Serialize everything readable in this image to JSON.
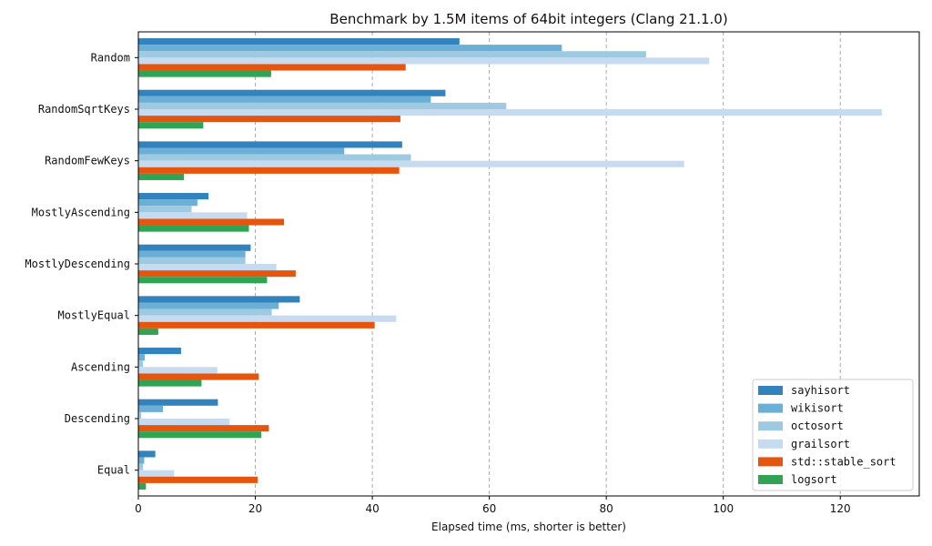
{
  "chart_data": {
    "type": "bar",
    "orientation": "horizontal",
    "title": "Benchmark by 1.5M items of 64bit integers (Clang 21.1.0)",
    "xlabel": "Elapsed time (ms, shorter is better)",
    "ylabel": "",
    "xlim": [
      0,
      133.5
    ],
    "xticks": [
      0,
      20,
      40,
      60,
      80,
      100,
      120
    ],
    "grid": "x-dashed",
    "legend_position": "lower-right",
    "categories": [
      "Random",
      "RandomSqrtKeys",
      "RandomFewKeys",
      "MostlyAscending",
      "MostlyDescending",
      "MostlyEqual",
      "Ascending",
      "Descending",
      "Equal"
    ],
    "series": [
      {
        "name": "sayhisort",
        "color": "#3182bd",
        "values": [
          54.9,
          52.5,
          45.1,
          12.0,
          19.2,
          27.6,
          7.3,
          13.6,
          2.9
        ]
      },
      {
        "name": "wikisort",
        "color": "#6baed6",
        "values": [
          72.4,
          50.0,
          35.2,
          10.1,
          18.3,
          24.0,
          1.1,
          4.2,
          1.0
        ]
      },
      {
        "name": "octosort",
        "color": "#9ecae1",
        "values": [
          86.8,
          62.9,
          46.6,
          9.1,
          18.3,
          22.8,
          0.8,
          0.5,
          0.8
        ]
      },
      {
        "name": "grailsort",
        "color": "#c6dbef",
        "values": [
          97.6,
          127.1,
          93.3,
          18.6,
          23.6,
          44.1,
          13.5,
          15.6,
          6.1
        ]
      },
      {
        "name": "std::stable_sort",
        "color": "#e6550d",
        "values": [
          45.7,
          44.8,
          44.6,
          24.9,
          26.9,
          40.4,
          20.6,
          22.3,
          20.4
        ]
      },
      {
        "name": "logsort",
        "color": "#31a354",
        "values": [
          22.7,
          11.1,
          7.8,
          18.9,
          22.0,
          3.4,
          10.8,
          21.0,
          1.3
        ]
      }
    ]
  }
}
